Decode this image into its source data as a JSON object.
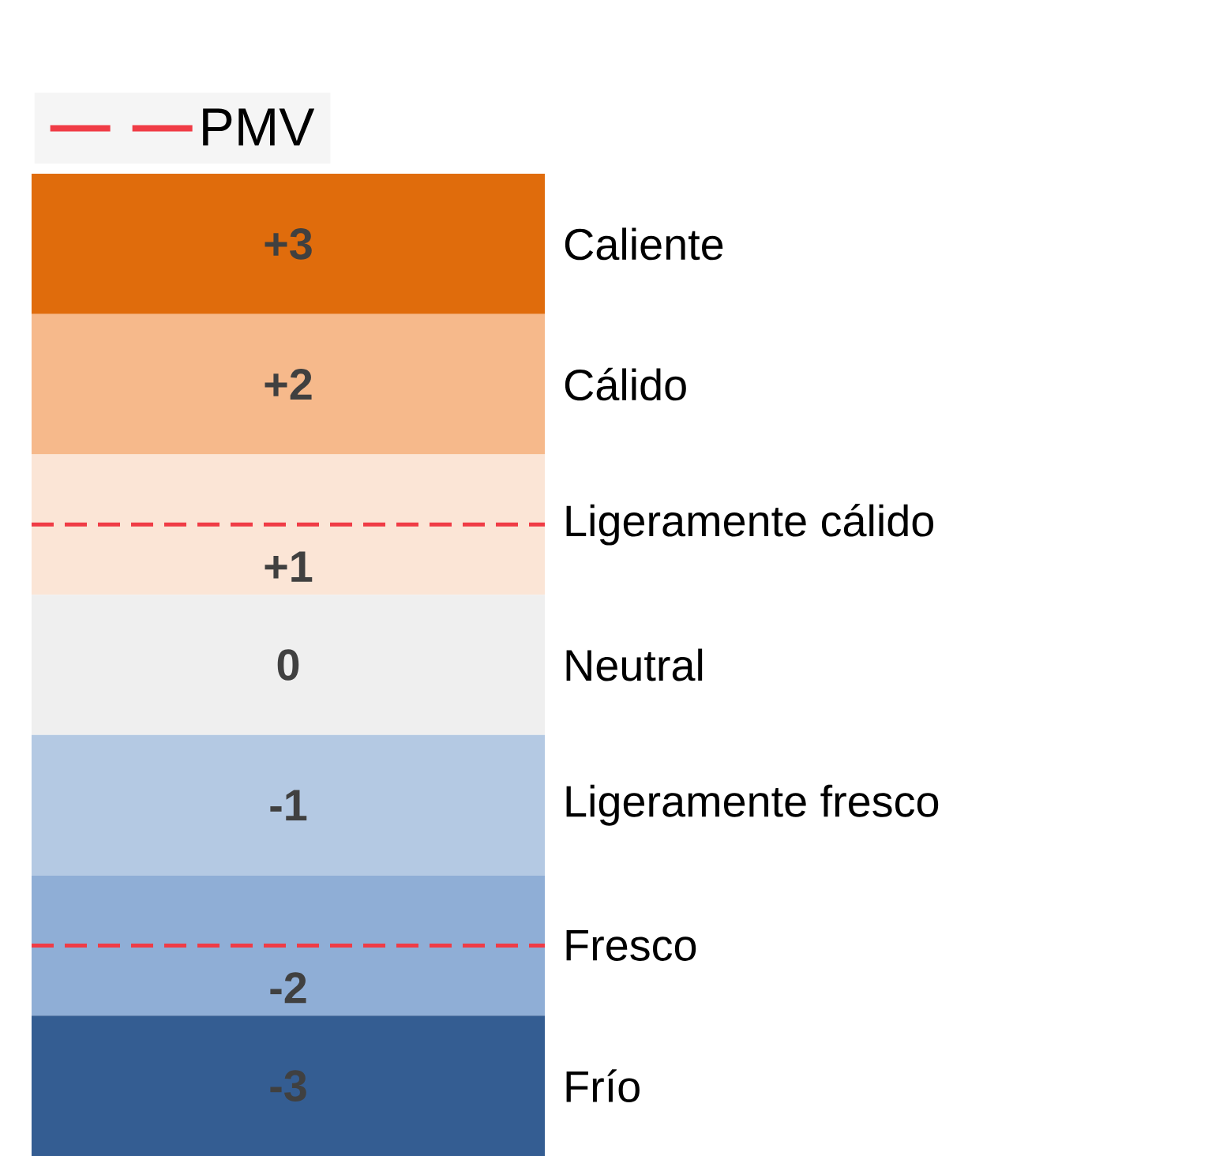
{
  "chart_data": {
    "type": "heatmap",
    "categories": [
      null
    ],
    "y_categories": [
      "Caliente",
      "Cálido",
      "Ligeramente cálido",
      "Neutral",
      "Ligeramente fresco",
      "Fresco",
      "Frío"
    ],
    "cells": [
      [
        3
      ],
      [
        2
      ],
      [
        1
      ],
      [
        0
      ],
      [
        -1
      ],
      [
        -2
      ],
      [
        -3
      ]
    ],
    "cell_labels": [
      [
        "+3"
      ],
      [
        "+2"
      ],
      [
        "+1"
      ],
      [
        "0"
      ],
      [
        "-1"
      ],
      [
        "-2"
      ],
      [
        "-3"
      ]
    ],
    "colors": [
      "#e06c0c",
      "#f6b98b",
      "#fbe5d6",
      "#efefef",
      "#b4c9e3",
      "#8faed6",
      "#345d92"
    ],
    "ref_lines": [
      {
        "axis": "y",
        "value": "Ligeramente cálido",
        "label": "PMV",
        "color": "#f03c46",
        "line_style": "dashed"
      },
      {
        "axis": "y",
        "value": "Fresco",
        "color": "#f03c46",
        "line_style": "dashed"
      }
    ],
    "legend": "top left"
  }
}
